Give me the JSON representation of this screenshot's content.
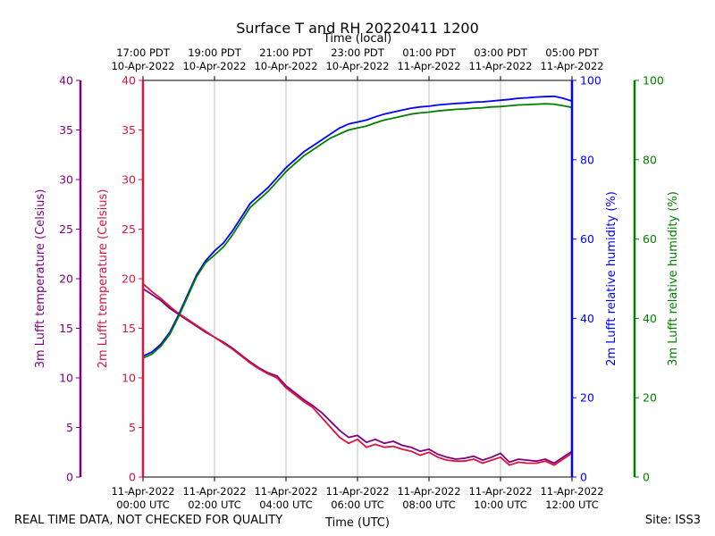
{
  "chart_data": {
    "type": "line",
    "title": "Surface T and RH 20220411 1200",
    "xlabel": "Time (UTC)",
    "x2label": "Time (local)",
    "x_hours_utc_range": [
      0,
      12
    ],
    "x_ticks_utc": [
      {
        "hour": 0,
        "line1": "11-Apr-2022",
        "line2": "00:00 UTC"
      },
      {
        "hour": 2,
        "line1": "11-Apr-2022",
        "line2": "02:00 UTC"
      },
      {
        "hour": 4,
        "line1": "11-Apr-2022",
        "line2": "04:00 UTC"
      },
      {
        "hour": 6,
        "line1": "11-Apr-2022",
        "line2": "06:00 UTC"
      },
      {
        "hour": 8,
        "line1": "11-Apr-2022",
        "line2": "08:00 UTC"
      },
      {
        "hour": 10,
        "line1": "11-Apr-2022",
        "line2": "10:00 UTC"
      },
      {
        "hour": 12,
        "line1": "11-Apr-2022",
        "line2": "12:00 UTC"
      }
    ],
    "x_ticks_local": [
      {
        "hour": 0,
        "line1": "17:00 PDT",
        "line2": "10-Apr-2022"
      },
      {
        "hour": 2,
        "line1": "19:00 PDT",
        "line2": "10-Apr-2022"
      },
      {
        "hour": 4,
        "line1": "21:00 PDT",
        "line2": "10-Apr-2022"
      },
      {
        "hour": 6,
        "line1": "23:00 PDT",
        "line2": "10-Apr-2022"
      },
      {
        "hour": 8,
        "line1": "01:00 PDT",
        "line2": "11-Apr-2022"
      },
      {
        "hour": 10,
        "line1": "03:00 PDT",
        "line2": "11-Apr-2022"
      },
      {
        "hour": 12,
        "line1": "05:00 PDT",
        "line2": "11-Apr-2022"
      }
    ],
    "axes": [
      {
        "id": "t3m",
        "label": "3m Lufft temperature (Celsius)",
        "ylim": [
          0,
          40
        ],
        "ticks": [
          0,
          5,
          10,
          15,
          20,
          25,
          30,
          35,
          40
        ],
        "color": "#800080",
        "side": "left-outer"
      },
      {
        "id": "t2m",
        "label": "2m Lufft temperature (Celsius)",
        "ylim": [
          0,
          40
        ],
        "ticks": [
          0,
          5,
          10,
          15,
          20,
          25,
          30,
          35,
          40
        ],
        "color": "#dc143c",
        "side": "left-inner"
      },
      {
        "id": "rh2m",
        "label": "2m Lufft relative humidity (%)",
        "ylim": [
          0,
          100
        ],
        "ticks": [
          0,
          20,
          40,
          60,
          80,
          100
        ],
        "color": "#0000ff",
        "side": "right-inner"
      },
      {
        "id": "rh3m",
        "label": "3m Lufft relative humidity (%)",
        "ylim": [
          0,
          100
        ],
        "ticks": [
          0,
          20,
          40,
          60,
          80,
          100
        ],
        "color": "#008000",
        "side": "right-outer"
      }
    ],
    "grid": "vertical",
    "series": [
      {
        "name": "3m Lufft temperature",
        "axis": "t3m",
        "color": "#800080",
        "x": [
          0,
          0.25,
          0.5,
          0.75,
          1.0,
          1.25,
          1.5,
          1.75,
          2.0,
          2.25,
          2.5,
          2.75,
          3.0,
          3.25,
          3.5,
          3.75,
          4.0,
          4.25,
          4.5,
          4.75,
          5.0,
          5.25,
          5.5,
          5.75,
          6.0,
          6.25,
          6.5,
          6.75,
          7.0,
          7.25,
          7.5,
          7.75,
          8.0,
          8.25,
          8.5,
          8.75,
          9.0,
          9.25,
          9.5,
          9.75,
          10.0,
          10.25,
          10.5,
          10.75,
          11.0,
          11.25,
          11.5,
          11.75,
          12.0
        ],
        "values": [
          19.0,
          18.4,
          17.8,
          17.0,
          16.4,
          15.8,
          15.2,
          14.6,
          14.1,
          13.6,
          13.0,
          12.3,
          11.6,
          11.0,
          10.5,
          10.2,
          9.2,
          8.5,
          7.8,
          7.2,
          6.5,
          5.6,
          4.7,
          4.0,
          4.2,
          3.5,
          3.8,
          3.4,
          3.6,
          3.2,
          3.0,
          2.6,
          2.8,
          2.3,
          2.0,
          1.8,
          1.9,
          2.1,
          1.7,
          2.0,
          2.4,
          1.5,
          1.8,
          1.7,
          1.6,
          1.8,
          1.4,
          2.0,
          2.6
        ]
      },
      {
        "name": "2m Lufft temperature",
        "axis": "t2m",
        "color": "#dc143c",
        "x": [
          0,
          0.25,
          0.5,
          0.75,
          1.0,
          1.25,
          1.5,
          1.75,
          2.0,
          2.25,
          2.5,
          2.75,
          3.0,
          3.25,
          3.5,
          3.75,
          4.0,
          4.25,
          4.5,
          4.75,
          5.0,
          5.25,
          5.5,
          5.75,
          6.0,
          6.25,
          6.5,
          6.75,
          7.0,
          7.25,
          7.5,
          7.75,
          8.0,
          8.25,
          8.5,
          8.75,
          9.0,
          9.25,
          9.5,
          9.75,
          10.0,
          10.25,
          10.5,
          10.75,
          11.0,
          11.25,
          11.5,
          11.75,
          12.0
        ],
        "values": [
          19.5,
          18.7,
          18.0,
          17.2,
          16.5,
          15.9,
          15.3,
          14.7,
          14.1,
          13.5,
          12.9,
          12.2,
          11.5,
          10.9,
          10.4,
          10.0,
          9.0,
          8.3,
          7.6,
          7.0,
          6.0,
          5.0,
          4.0,
          3.4,
          3.8,
          3.0,
          3.3,
          3.0,
          3.1,
          2.8,
          2.6,
          2.2,
          2.5,
          2.0,
          1.7,
          1.6,
          1.6,
          1.8,
          1.4,
          1.7,
          2.0,
          1.2,
          1.5,
          1.4,
          1.4,
          1.6,
          1.2,
          1.8,
          2.4
        ]
      },
      {
        "name": "2m Lufft relative humidity",
        "axis": "rh2m",
        "color": "#0000ff",
        "x": [
          0,
          0.25,
          0.5,
          0.75,
          1.0,
          1.25,
          1.5,
          1.75,
          2.0,
          2.25,
          2.5,
          2.75,
          3.0,
          3.25,
          3.5,
          3.75,
          4.0,
          4.25,
          4.5,
          4.75,
          5.0,
          5.25,
          5.5,
          5.75,
          6.0,
          6.25,
          6.5,
          6.75,
          7.0,
          7.25,
          7.5,
          7.75,
          8.0,
          8.25,
          8.5,
          8.75,
          9.0,
          9.25,
          9.5,
          9.75,
          10.0,
          10.25,
          10.5,
          10.75,
          11.0,
          11.25,
          11.5,
          11.75,
          12.0
        ],
        "values": [
          30.5,
          31.5,
          33.5,
          36.5,
          41.0,
          46.0,
          51.0,
          54.5,
          57.0,
          59.0,
          62.0,
          65.5,
          69.0,
          71.0,
          73.0,
          75.5,
          78.0,
          80.0,
          82.0,
          83.5,
          85.0,
          86.5,
          88.0,
          89.0,
          89.5,
          90.0,
          90.8,
          91.5,
          92.0,
          92.5,
          93.0,
          93.3,
          93.5,
          93.8,
          94.0,
          94.2,
          94.3,
          94.5,
          94.6,
          94.8,
          95.0,
          95.2,
          95.5,
          95.6,
          95.8,
          95.9,
          96.0,
          95.5,
          94.8
        ]
      },
      {
        "name": "3m Lufft relative humidity",
        "axis": "rh3m",
        "color": "#008000",
        "x": [
          0,
          0.25,
          0.5,
          0.75,
          1.0,
          1.25,
          1.5,
          1.75,
          2.0,
          2.25,
          2.5,
          2.75,
          3.0,
          3.25,
          3.5,
          3.75,
          4.0,
          4.25,
          4.5,
          4.75,
          5.0,
          5.25,
          5.5,
          5.75,
          6.0,
          6.25,
          6.5,
          6.75,
          7.0,
          7.25,
          7.5,
          7.75,
          8.0,
          8.25,
          8.5,
          8.75,
          9.0,
          9.25,
          9.5,
          9.75,
          10.0,
          10.25,
          10.5,
          10.75,
          11.0,
          11.25,
          11.5,
          11.75,
          12.0
        ],
        "values": [
          30.0,
          31.0,
          33.0,
          36.0,
          40.5,
          45.5,
          50.5,
          54.0,
          56.0,
          58.0,
          61.0,
          64.5,
          68.0,
          70.0,
          72.0,
          74.5,
          77.0,
          79.0,
          81.0,
          82.5,
          84.0,
          85.5,
          86.5,
          87.5,
          88.0,
          88.5,
          89.3,
          90.0,
          90.5,
          91.0,
          91.5,
          91.8,
          92.0,
          92.3,
          92.5,
          92.7,
          92.8,
          93.0,
          93.1,
          93.3,
          93.4,
          93.6,
          93.8,
          93.9,
          94.0,
          94.1,
          94.0,
          93.6,
          93.2
        ]
      }
    ]
  },
  "footer": {
    "left": "REAL TIME DATA, NOT CHECKED FOR QUALITY",
    "right": "Site: ISS3"
  }
}
